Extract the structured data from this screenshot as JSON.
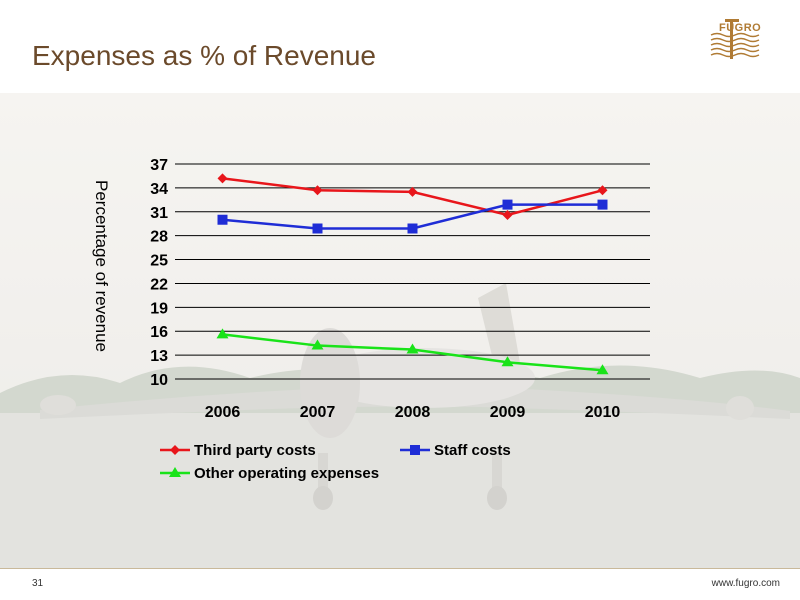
{
  "slide": {
    "title": "Expenses as % of Revenue",
    "logo_text": "FUGRO",
    "page_number": "31",
    "website": "www.fugro.com"
  },
  "colors": {
    "title": "#6b4a2b",
    "logo": "#b07b34",
    "third_party": "#e8161b",
    "staff": "#1f2dd6",
    "other": "#19e319"
  },
  "chart_data": {
    "type": "line",
    "title": "",
    "xlabel": "",
    "ylabel": "Percentage of revenue",
    "categories": [
      "2006",
      "2007",
      "2008",
      "2009",
      "2010"
    ],
    "yticks": [
      "37",
      "34",
      "31",
      "28",
      "25",
      "22",
      "19",
      "16",
      "13",
      "10"
    ],
    "ylim": [
      10,
      37
    ],
    "grid": true,
    "legend_position": "bottom",
    "series": [
      {
        "name": "Third party costs",
        "marker": "diamond",
        "values": [
          35.2,
          33.7,
          33.5,
          30.6,
          33.7
        ]
      },
      {
        "name": "Staff costs",
        "marker": "square",
        "values": [
          30.0,
          28.9,
          28.9,
          31.9,
          31.9
        ]
      },
      {
        "name": "Other operating expenses",
        "marker": "triangle",
        "values": [
          15.6,
          14.2,
          13.7,
          12.1,
          11.1
        ]
      }
    ]
  }
}
